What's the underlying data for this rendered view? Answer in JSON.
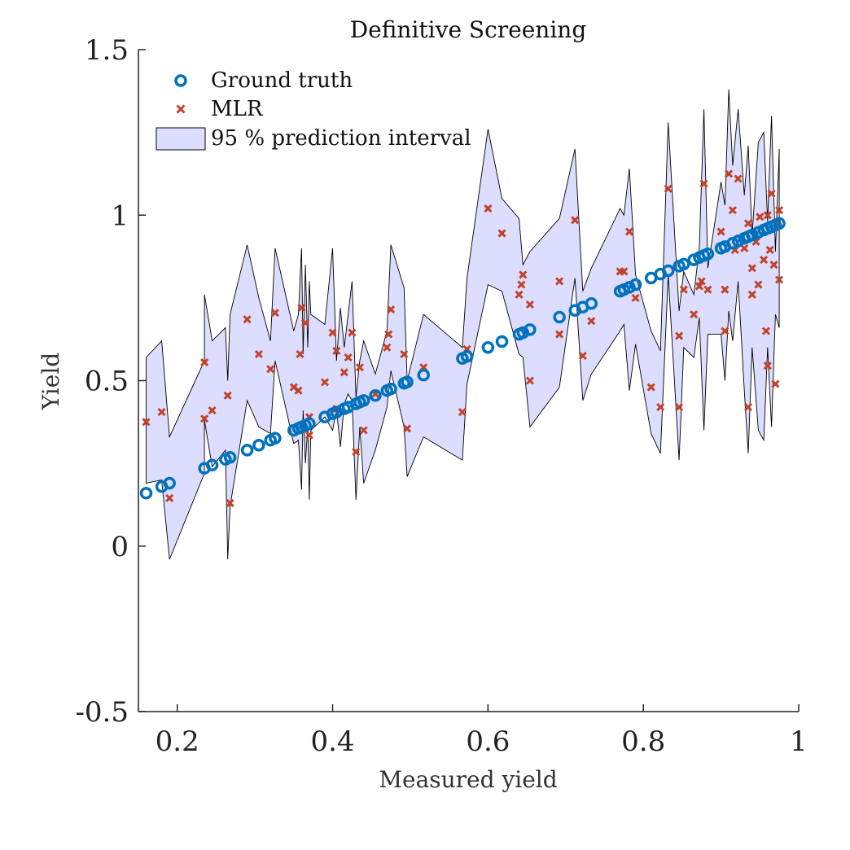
{
  "chart_data": {
    "type": "scatter",
    "title": "Definitive Screening",
    "xlabel": "Measured yield",
    "ylabel": "Yield",
    "xlim": [
      0.15,
      1.0
    ],
    "ylim": [
      -0.5,
      1.5
    ],
    "xticks": [
      0.2,
      0.4,
      0.6,
      0.8,
      1.0
    ],
    "xtick_labels": [
      "0.2",
      "0.4",
      "0.6",
      "0.8",
      "1"
    ],
    "yticks": [
      -0.5,
      0,
      0.5,
      1,
      1.5
    ],
    "ytick_labels": [
      "-0.5",
      "0",
      "0.5",
      "1",
      "1.5"
    ],
    "grid": false,
    "legend_position": "top-left",
    "colors": {
      "ground_truth": "#0072BD",
      "mlr": "#C0432A",
      "interval_fill": "#DDDDFF",
      "interval_stroke": "#000000"
    },
    "series": [
      {
        "name": "Ground truth",
        "marker": "circle",
        "x": [
          0.16,
          0.18,
          0.19,
          0.235,
          0.245,
          0.262,
          0.268,
          0.29,
          0.305,
          0.32,
          0.326,
          0.35,
          0.356,
          0.36,
          0.365,
          0.37,
          0.39,
          0.4,
          0.405,
          0.415,
          0.42,
          0.43,
          0.435,
          0.44,
          0.455,
          0.47,
          0.475,
          0.492,
          0.496,
          0.517,
          0.567,
          0.573,
          0.6,
          0.618,
          0.64,
          0.645,
          0.654,
          0.692,
          0.712,
          0.722,
          0.733,
          0.77,
          0.775,
          0.782,
          0.79,
          0.81,
          0.822,
          0.832,
          0.846,
          0.852,
          0.865,
          0.872,
          0.878,
          0.883,
          0.9,
          0.905,
          0.915,
          0.922,
          0.93,
          0.935,
          0.94,
          0.948,
          0.955,
          0.96,
          0.965,
          0.97,
          0.975
        ],
        "y": [
          0.16,
          0.18,
          0.19,
          0.235,
          0.245,
          0.262,
          0.268,
          0.29,
          0.305,
          0.32,
          0.326,
          0.35,
          0.356,
          0.36,
          0.365,
          0.37,
          0.39,
          0.4,
          0.405,
          0.415,
          0.42,
          0.43,
          0.435,
          0.44,
          0.455,
          0.47,
          0.475,
          0.492,
          0.496,
          0.517,
          0.567,
          0.573,
          0.6,
          0.618,
          0.64,
          0.645,
          0.654,
          0.692,
          0.712,
          0.722,
          0.733,
          0.77,
          0.775,
          0.782,
          0.79,
          0.81,
          0.822,
          0.832,
          0.846,
          0.852,
          0.865,
          0.872,
          0.878,
          0.883,
          0.9,
          0.905,
          0.915,
          0.922,
          0.93,
          0.935,
          0.94,
          0.948,
          0.955,
          0.96,
          0.965,
          0.97,
          0.975
        ]
      },
      {
        "name": "MLR",
        "marker": "x",
        "x": [
          0.16,
          0.18,
          0.19,
          0.235,
          0.235,
          0.245,
          0.265,
          0.268,
          0.29,
          0.305,
          0.32,
          0.326,
          0.35,
          0.356,
          0.358,
          0.36,
          0.365,
          0.37,
          0.37,
          0.39,
          0.4,
          0.405,
          0.405,
          0.415,
          0.42,
          0.425,
          0.43,
          0.435,
          0.44,
          0.455,
          0.47,
          0.472,
          0.475,
          0.492,
          0.496,
          0.517,
          0.567,
          0.573,
          0.6,
          0.618,
          0.64,
          0.643,
          0.645,
          0.654,
          0.654,
          0.692,
          0.692,
          0.712,
          0.722,
          0.733,
          0.77,
          0.775,
          0.782,
          0.79,
          0.81,
          0.822,
          0.832,
          0.846,
          0.846,
          0.852,
          0.865,
          0.872,
          0.875,
          0.878,
          0.883,
          0.9,
          0.905,
          0.905,
          0.91,
          0.915,
          0.918,
          0.922,
          0.93,
          0.935,
          0.935,
          0.94,
          0.94,
          0.945,
          0.948,
          0.95,
          0.955,
          0.958,
          0.96,
          0.96,
          0.963,
          0.965,
          0.968,
          0.97,
          0.972,
          0.975,
          0.975
        ],
        "y": [
          0.375,
          0.405,
          0.145,
          0.555,
          0.385,
          0.41,
          0.455,
          0.13,
          0.685,
          0.58,
          0.535,
          0.705,
          0.48,
          0.47,
          0.58,
          0.72,
          0.675,
          0.39,
          0.335,
          0.495,
          0.645,
          0.415,
          0.59,
          0.525,
          0.57,
          0.645,
          0.285,
          0.54,
          0.35,
          0.46,
          0.6,
          0.64,
          0.715,
          0.58,
          0.355,
          0.54,
          0.405,
          0.595,
          1.02,
          0.945,
          0.76,
          0.79,
          0.82,
          0.73,
          0.5,
          0.8,
          0.64,
          0.985,
          0.575,
          0.68,
          0.83,
          0.83,
          0.95,
          0.75,
          0.48,
          0.42,
          1.08,
          0.42,
          0.635,
          0.775,
          0.7,
          0.785,
          0.8,
          1.095,
          0.775,
          0.95,
          0.65,
          0.775,
          1.125,
          1.015,
          0.895,
          1.11,
          0.9,
          0.42,
          0.975,
          0.84,
          0.76,
          0.92,
          0.79,
          0.995,
          0.865,
          0.65,
          1.0,
          0.545,
          0.895,
          1.065,
          0.85,
          0.49,
          0.975,
          1.015,
          0.805
        ]
      }
    ],
    "interval": {
      "name": "95 % prediction interval",
      "x": [
        0.16,
        0.18,
        0.19,
        0.235,
        0.235,
        0.245,
        0.262,
        0.265,
        0.268,
        0.29,
        0.305,
        0.32,
        0.326,
        0.35,
        0.356,
        0.36,
        0.362,
        0.365,
        0.368,
        0.37,
        0.372,
        0.39,
        0.4,
        0.405,
        0.41,
        0.415,
        0.42,
        0.425,
        0.43,
        0.435,
        0.44,
        0.455,
        0.47,
        0.475,
        0.492,
        0.496,
        0.517,
        0.567,
        0.573,
        0.6,
        0.618,
        0.64,
        0.645,
        0.654,
        0.692,
        0.712,
        0.722,
        0.733,
        0.77,
        0.775,
        0.782,
        0.79,
        0.81,
        0.822,
        0.832,
        0.846,
        0.852,
        0.865,
        0.872,
        0.878,
        0.883,
        0.9,
        0.905,
        0.91,
        0.915,
        0.922,
        0.93,
        0.935,
        0.94,
        0.948,
        0.955,
        0.96,
        0.965,
        0.97,
        0.975
      ],
      "upper": [
        0.57,
        0.62,
        0.33,
        0.56,
        0.76,
        0.62,
        0.66,
        0.5,
        0.7,
        0.91,
        0.75,
        0.62,
        0.9,
        0.65,
        0.7,
        0.9,
        0.58,
        0.85,
        0.6,
        0.8,
        0.7,
        0.67,
        0.9,
        0.56,
        0.72,
        0.6,
        0.7,
        0.8,
        0.45,
        0.56,
        0.62,
        0.52,
        0.65,
        0.91,
        0.78,
        0.5,
        0.7,
        0.6,
        0.81,
        1.26,
        1.05,
        0.99,
        0.85,
        0.89,
        0.99,
        1.2,
        0.77,
        0.84,
        1.02,
        1.0,
        1.14,
        0.82,
        0.65,
        0.59,
        1.28,
        0.71,
        0.83,
        0.76,
        0.9,
        1.32,
        0.84,
        1.1,
        1.03,
        1.38,
        1.15,
        1.32,
        1.06,
        1.21,
        0.94,
        1.22,
        1.25,
        0.98,
        1.3,
        0.89,
        1.2
      ],
      "lower": [
        0.19,
        0.2,
        -0.04,
        0.22,
        0.38,
        0.24,
        0.29,
        -0.04,
        0.12,
        0.44,
        0.36,
        0.34,
        0.56,
        0.31,
        0.32,
        0.17,
        0.41,
        0.25,
        0.36,
        0.14,
        0.35,
        0.39,
        0.35,
        0.41,
        0.3,
        0.43,
        0.46,
        0.44,
        0.14,
        0.36,
        0.19,
        0.29,
        0.42,
        0.53,
        0.36,
        0.21,
        0.33,
        0.26,
        0.49,
        0.79,
        0.77,
        0.58,
        0.57,
        0.36,
        0.48,
        0.81,
        0.44,
        0.52,
        0.65,
        0.67,
        0.47,
        0.61,
        0.34,
        0.28,
        0.82,
        0.26,
        0.6,
        0.57,
        0.69,
        0.35,
        0.64,
        0.64,
        0.5,
        0.71,
        0.62,
        0.8,
        0.47,
        0.28,
        0.6,
        0.35,
        0.32,
        0.6,
        0.36,
        0.7,
        0.66
      ]
    }
  }
}
